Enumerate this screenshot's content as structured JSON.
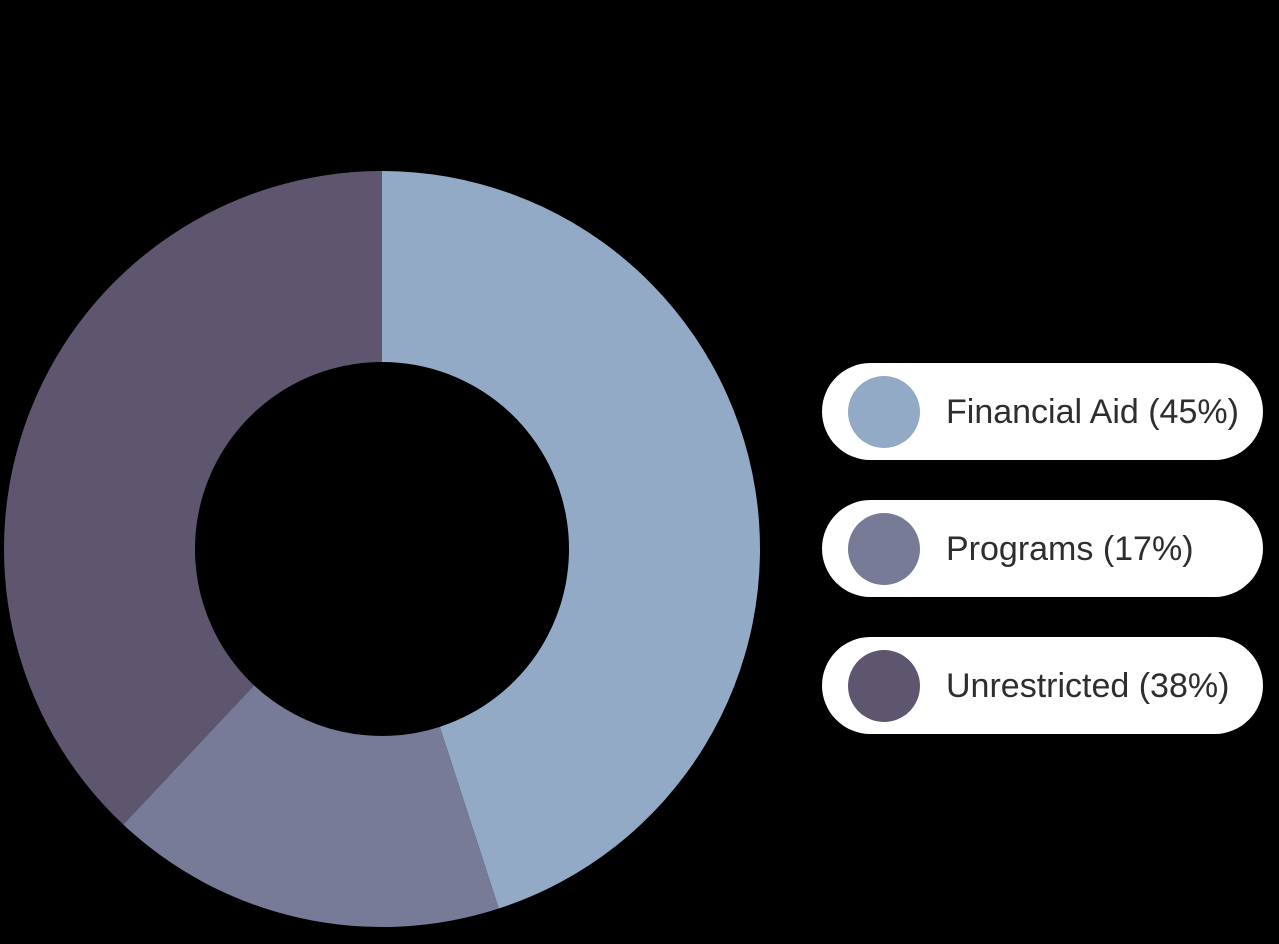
{
  "background": "#000000",
  "chart_data": {
    "type": "pie",
    "variant": "donut",
    "title": "",
    "start_angle_deg": -90,
    "direction": "clockwise",
    "total": 100,
    "segments": [
      {
        "label": "Financial Aid",
        "value_pct": 45,
        "color": "#92aac6",
        "legend_label": "Financial Aid (45%)"
      },
      {
        "label": "Programs",
        "value_pct": 17,
        "color": "#777b98",
        "legend_label": "Programs (17%)"
      },
      {
        "label": "Unrestricted",
        "value_pct": 38,
        "color": "#5e566f",
        "legend_label": "Unrestricted (38%)"
      }
    ],
    "legend": {
      "position": "right",
      "pill_background": "#ffffff",
      "text_color": "#2e2e2e"
    }
  }
}
